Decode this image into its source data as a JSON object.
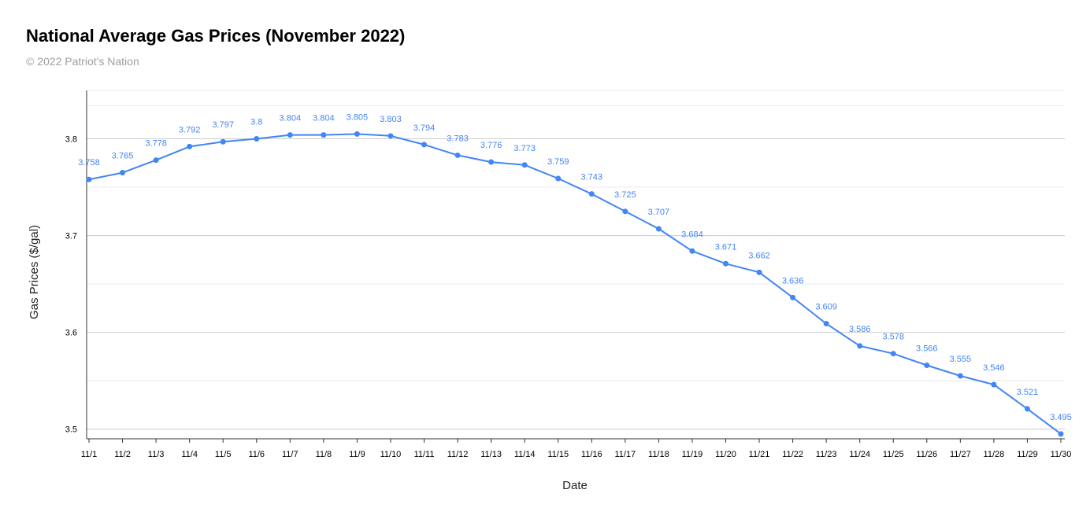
{
  "header": {
    "title": "National Average Gas Prices (November 2022)",
    "subtitle": "© 2022 Patriot's Nation"
  },
  "colors": {
    "series": "#4285f4",
    "grid_major": "#cccccc",
    "grid_minor": "#ebebeb",
    "axis": "#333333"
  },
  "chart_data": {
    "type": "line",
    "title": "National Average Gas Prices (November 2022)",
    "subtitle": "© 2022 Patriot's Nation",
    "xlabel": "Date",
    "ylabel": "Gas Prices ($/gal)",
    "ylim": [
      3.49,
      3.85
    ],
    "yticks": [
      3.5,
      3.6,
      3.7,
      3.8
    ],
    "ytick_labels": [
      "3.5",
      "3.6",
      "3.7",
      "3.8"
    ],
    "grid": true,
    "legend": "none",
    "categories": [
      "11/1",
      "11/2",
      "11/3",
      "11/4",
      "11/5",
      "11/6",
      "11/7",
      "11/8",
      "11/9",
      "11/10",
      "11/11",
      "11/12",
      "11/13",
      "11/14",
      "11/15",
      "11/16",
      "11/17",
      "11/18",
      "11/19",
      "11/20",
      "11/21",
      "11/22",
      "11/23",
      "11/24",
      "11/25",
      "11/26",
      "11/27",
      "11/28",
      "11/29",
      "11/30"
    ],
    "series": [
      {
        "values": [
          3.758,
          3.765,
          3.778,
          3.792,
          3.797,
          3.8,
          3.804,
          3.804,
          3.805,
          3.803,
          3.794,
          3.783,
          3.776,
          3.773,
          3.759,
          3.743,
          3.725,
          3.707,
          3.684,
          3.671,
          3.662,
          3.636,
          3.609,
          3.586,
          3.578,
          3.566,
          3.555,
          3.546,
          3.521,
          3.495
        ],
        "labels": [
          "3.758",
          "3.765",
          "3.778",
          "3.792",
          "3.797",
          "3.8",
          "3.804",
          "3.804",
          "3.805",
          "3.803",
          "3.794",
          "3.783",
          "3.776",
          "3.773",
          "3.759",
          "3.743",
          "3.725",
          "3.707",
          "3.684",
          "3.671",
          "3.662",
          "3.636",
          "3.609",
          "3.586",
          "3.578",
          "3.566",
          "3.555",
          "3.546",
          "3.521",
          "3.495"
        ]
      }
    ]
  }
}
